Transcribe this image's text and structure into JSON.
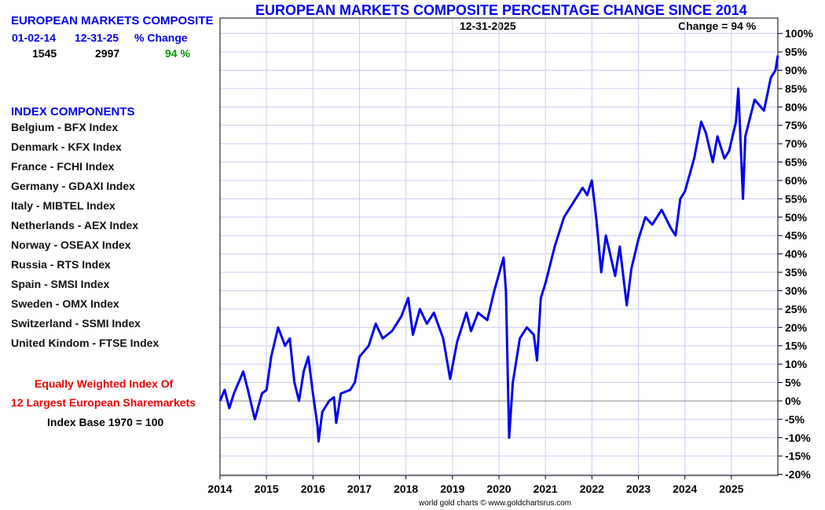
{
  "sidebar": {
    "title": "EUROPEAN MARKETS COMPOSITE",
    "col_start": "01-02-14",
    "col_end": "12-31-25",
    "col_change": "% Change",
    "val_start": "1545",
    "val_end": "2997",
    "val_change": "94 %",
    "components_title": "INDEX COMPONENTS",
    "components": [
      "Belgium - BFX Index",
      "Denmark - KFX Index",
      "France - FCHI Index",
      "Germany - GDAXI Index",
      "Italy - MIBTEL Index",
      "Netherlands - AEX Index",
      "Norway - OSEAX Index",
      "Russia - RTS Index",
      "Spain - SMSI Index",
      "Sweden - OMX Index",
      "Switzerland - SSMI Index",
      "United Kindom - FTSE Index"
    ],
    "note1": "Equally Weighted Index Of",
    "note2": "12 Largest European Sharemarkets",
    "note3": "Index Base 1970 = 100"
  },
  "chart_data": {
    "type": "line",
    "title": "EUROPEAN MARKETS COMPOSITE PERCENTAGE CHANGE SINCE 2014",
    "date_label": "12-31-2025",
    "change_label": "Change = 94 %",
    "footer": "world gold charts © www.goldchartsrus.com",
    "xlim": [
      2014,
      2026
    ],
    "ylim": [
      -20.3,
      104.2
    ],
    "x_ticks": [
      "2014",
      "2015",
      "2016",
      "2017",
      "2018",
      "2019",
      "2020",
      "2021",
      "2022",
      "2023",
      "2024",
      "2025"
    ],
    "y_ticks": [
      "100%",
      "95%",
      "90%",
      "85%",
      "80%",
      "75%",
      "70%",
      "65%",
      "60%",
      "55%",
      "50%",
      "45%",
      "40%",
      "35%",
      "30%",
      "25%",
      "20%",
      "15%",
      "10%",
      "5%",
      "0%",
      "-5%",
      "-10%",
      "-15%",
      "-20%"
    ],
    "line_color": "#0000ee",
    "grid_color": "#ccccf5",
    "series": [
      {
        "name": "European Markets Composite % change",
        "points": [
          [
            2014.0,
            0
          ],
          [
            2014.1,
            3
          ],
          [
            2014.2,
            -2
          ],
          [
            2014.3,
            2
          ],
          [
            2014.5,
            8
          ],
          [
            2014.6,
            3
          ],
          [
            2014.75,
            -5
          ],
          [
            2014.9,
            2
          ],
          [
            2015.0,
            3
          ],
          [
            2015.1,
            12
          ],
          [
            2015.25,
            20
          ],
          [
            2015.4,
            15
          ],
          [
            2015.5,
            17
          ],
          [
            2015.6,
            5
          ],
          [
            2015.7,
            0
          ],
          [
            2015.8,
            8
          ],
          [
            2015.9,
            12
          ],
          [
            2016.0,
            2
          ],
          [
            2016.1,
            -7
          ],
          [
            2016.12,
            -11
          ],
          [
            2016.2,
            -3
          ],
          [
            2016.35,
            0
          ],
          [
            2016.45,
            1
          ],
          [
            2016.5,
            -6
          ],
          [
            2016.6,
            2
          ],
          [
            2016.8,
            3
          ],
          [
            2016.9,
            5
          ],
          [
            2017.0,
            12
          ],
          [
            2017.2,
            15
          ],
          [
            2017.35,
            21
          ],
          [
            2017.5,
            17
          ],
          [
            2017.7,
            19
          ],
          [
            2017.9,
            23
          ],
          [
            2018.05,
            28
          ],
          [
            2018.15,
            18
          ],
          [
            2018.3,
            25
          ],
          [
            2018.45,
            21
          ],
          [
            2018.6,
            24
          ],
          [
            2018.8,
            17
          ],
          [
            2018.95,
            6
          ],
          [
            2019.1,
            16
          ],
          [
            2019.3,
            24
          ],
          [
            2019.4,
            19
          ],
          [
            2019.55,
            24
          ],
          [
            2019.75,
            22
          ],
          [
            2019.9,
            30
          ],
          [
            2020.1,
            39
          ],
          [
            2020.15,
            30
          ],
          [
            2020.22,
            -10
          ],
          [
            2020.3,
            5
          ],
          [
            2020.45,
            17
          ],
          [
            2020.6,
            20
          ],
          [
            2020.75,
            18
          ],
          [
            2020.82,
            11
          ],
          [
            2020.9,
            28
          ],
          [
            2021.0,
            32
          ],
          [
            2021.2,
            42
          ],
          [
            2021.4,
            50
          ],
          [
            2021.6,
            54
          ],
          [
            2021.8,
            58
          ],
          [
            2021.9,
            56
          ],
          [
            2022.0,
            60
          ],
          [
            2022.1,
            49
          ],
          [
            2022.2,
            35
          ],
          [
            2022.3,
            45
          ],
          [
            2022.5,
            34
          ],
          [
            2022.6,
            42
          ],
          [
            2022.75,
            26
          ],
          [
            2022.85,
            36
          ],
          [
            2023.0,
            44
          ],
          [
            2023.15,
            50
          ],
          [
            2023.3,
            48
          ],
          [
            2023.5,
            52
          ],
          [
            2023.7,
            47
          ],
          [
            2023.8,
            45
          ],
          [
            2023.9,
            55
          ],
          [
            2024.0,
            57
          ],
          [
            2024.2,
            66
          ],
          [
            2024.35,
            76
          ],
          [
            2024.45,
            73
          ],
          [
            2024.6,
            65
          ],
          [
            2024.7,
            72
          ],
          [
            2024.85,
            66
          ],
          [
            2024.95,
            68
          ],
          [
            2025.1,
            76
          ],
          [
            2025.15,
            85
          ],
          [
            2025.25,
            55
          ],
          [
            2025.3,
            72
          ],
          [
            2025.5,
            82
          ],
          [
            2025.7,
            79
          ],
          [
            2025.85,
            88
          ],
          [
            2025.95,
            90
          ],
          [
            2026.0,
            94
          ]
        ]
      }
    ]
  }
}
